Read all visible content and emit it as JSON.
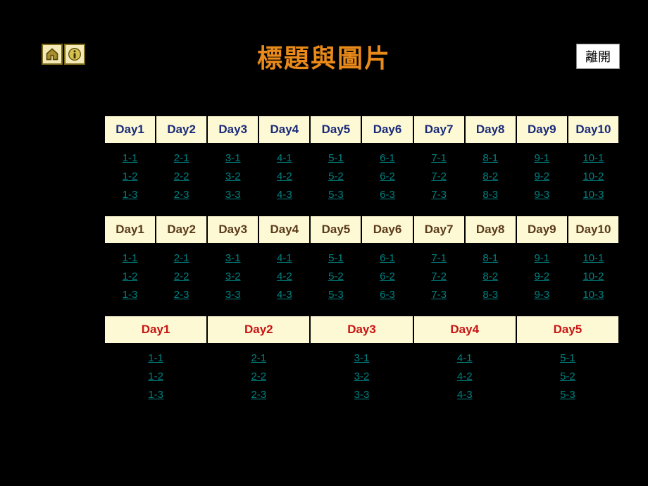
{
  "title": "標題與圖片",
  "exit_label": "離開",
  "sections": [
    {
      "header_color_class": "hdr-blue",
      "cols": 10,
      "headers": [
        "Day1",
        "Day2",
        "Day3",
        "Day4",
        "Day5",
        "Day6",
        "Day7",
        "Day8",
        "Day9",
        "Day10"
      ],
      "rows": [
        [
          "1-1",
          "2-1",
          "3-1",
          "4-1",
          "5-1",
          "6-1",
          "7-1",
          "8-1",
          "9-1",
          "10-1"
        ],
        [
          "1-2",
          "2-2",
          "3-2",
          "4-2",
          "5-2",
          "6-2",
          "7-2",
          "8-2",
          "9-2",
          "10-2"
        ],
        [
          "1-3",
          "2-3",
          "3-3",
          "4-3",
          "5-3",
          "6-3",
          "7-3",
          "8-3",
          "9-3",
          "10-3"
        ]
      ]
    },
    {
      "header_color_class": "hdr-brown",
      "cols": 10,
      "headers": [
        "Day1",
        "Day2",
        "Day3",
        "Day4",
        "Day5",
        "Day6",
        "Day7",
        "Day8",
        "Day9",
        "Day10"
      ],
      "rows": [
        [
          "1-1",
          "2-1",
          "3-1",
          "4-1",
          "5-1",
          "6-1",
          "7-1",
          "8-1",
          "9-1",
          "10-1"
        ],
        [
          "1-2",
          "2-2",
          "3-2",
          "4-2",
          "5-2",
          "6-2",
          "7-2",
          "8-2",
          "9-2",
          "10-2"
        ],
        [
          "1-3",
          "2-3",
          "3-3",
          "4-3",
          "5-3",
          "6-3",
          "7-3",
          "8-3",
          "9-3",
          "10-3"
        ]
      ]
    },
    {
      "header_color_class": "hdr-red",
      "cols": 5,
      "headers": [
        "Day1",
        "Day2",
        "Day3",
        "Day4",
        "Day5"
      ],
      "rows": [
        [
          "1-1",
          "2-1",
          "3-1",
          "4-1",
          "5-1"
        ],
        [
          "1-2",
          "2-2",
          "3-2",
          "4-2",
          "5-2"
        ],
        [
          "1-3",
          "2-3",
          "3-3",
          "4-3",
          "5-3"
        ]
      ]
    }
  ],
  "colors": {
    "title": "#e98a1a",
    "header_bg": "#fdf9d4",
    "link": "#008080",
    "background": "#000000",
    "icon_bg": "#f3eab8"
  }
}
